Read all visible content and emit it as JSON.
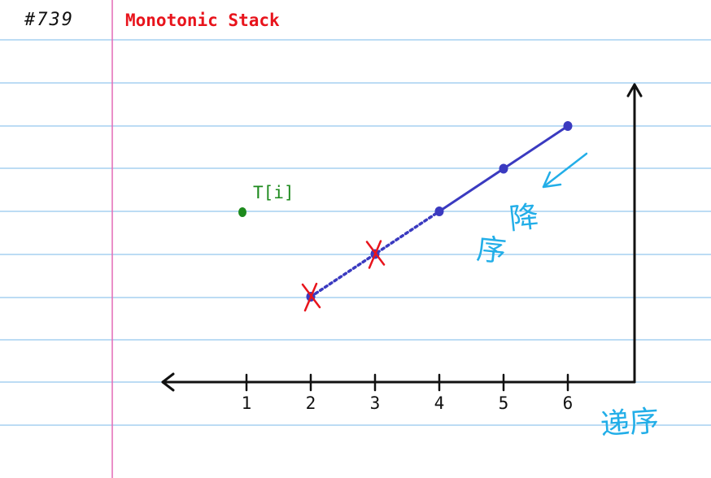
{
  "header": {
    "note_id": "#739",
    "title": "Monotonic Stack"
  },
  "colors": {
    "ruled_line": "#7ab8ea",
    "margin_line": "#e46ab5",
    "title": "#e8141c",
    "axis": "#111111",
    "stack": "#3a3ac0",
    "removed_mark": "#e8141c",
    "current_point": "#1d8a1d",
    "annotation": "#22aee8"
  },
  "diagram": {
    "x_ticks": [
      "1",
      "2",
      "3",
      "4",
      "5",
      "6"
    ],
    "current_point": {
      "label": "T[i]",
      "x": 1,
      "y": 4
    },
    "stack_points": [
      {
        "x": 2,
        "y": 2,
        "removed": true
      },
      {
        "x": 3,
        "y": 3,
        "removed": true
      },
      {
        "x": 4,
        "y": 4,
        "removed": false
      },
      {
        "x": 5,
        "y": 5,
        "removed": false
      },
      {
        "x": 6,
        "y": 6,
        "removed": false
      }
    ],
    "decreasing_label": "降序",
    "increasing_label": "递序"
  }
}
